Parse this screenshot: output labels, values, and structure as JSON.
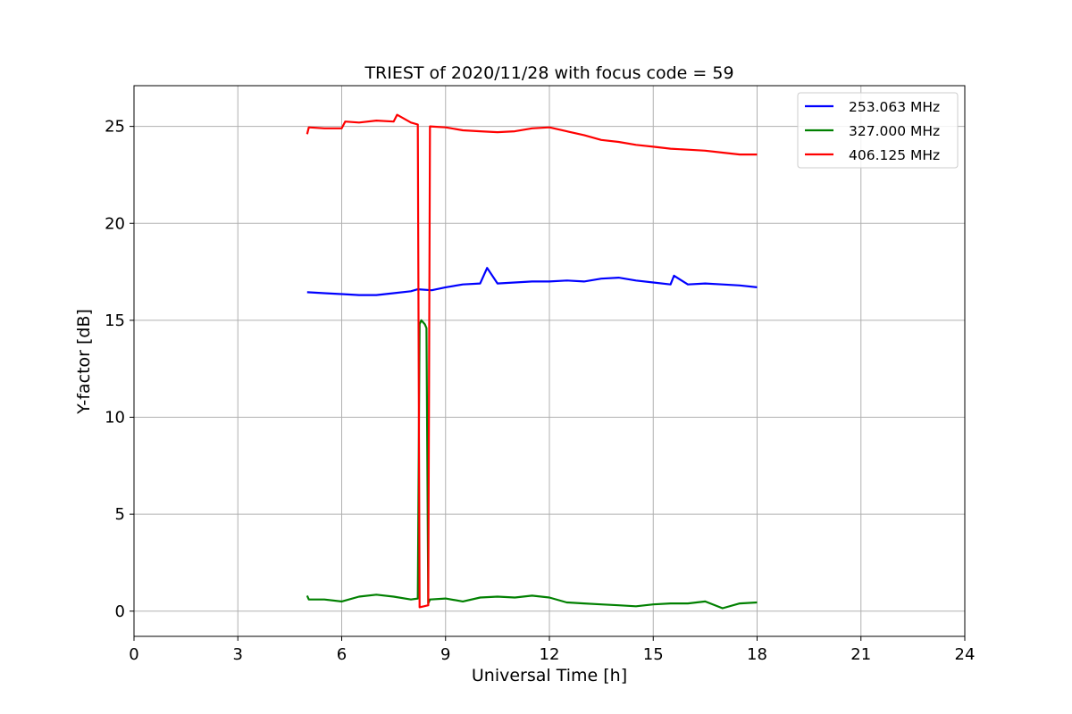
{
  "chart_data": {
    "type": "line",
    "title": "TRIEST of 2020/11/28 with focus code = 59",
    "xlabel": "Universal Time [h]",
    "ylabel": "Y-factor [dB]",
    "xlim": [
      0,
      24
    ],
    "ylim": [
      -1.3,
      27.1
    ],
    "xticks": [
      0,
      3,
      6,
      9,
      12,
      15,
      18,
      21,
      24
    ],
    "yticks": [
      0,
      5,
      10,
      15,
      20,
      25
    ],
    "grid": true,
    "legend_position": "top-right",
    "series": [
      {
        "name": "253.063 MHz",
        "color": "#0000ff",
        "x": [
          5.0,
          5.5,
          6.0,
          6.5,
          7.0,
          7.5,
          8.0,
          8.2,
          8.6,
          9.0,
          9.5,
          10.0,
          10.2,
          10.5,
          11.0,
          11.5,
          12.0,
          12.5,
          13.0,
          13.5,
          14.0,
          14.5,
          15.0,
          15.5,
          15.6,
          16.0,
          16.5,
          17.0,
          17.5,
          18.0
        ],
        "y": [
          16.45,
          16.4,
          16.35,
          16.3,
          16.3,
          16.4,
          16.5,
          16.6,
          16.55,
          16.7,
          16.85,
          16.9,
          17.7,
          16.9,
          16.95,
          17.0,
          17.0,
          17.05,
          17.0,
          17.15,
          17.2,
          17.05,
          16.95,
          16.85,
          17.3,
          16.85,
          16.9,
          16.85,
          16.8,
          16.7
        ]
      },
      {
        "name": "327.000 MHz",
        "color": "#008000",
        "x": [
          5.0,
          5.05,
          5.5,
          6.0,
          6.5,
          7.0,
          7.5,
          8.0,
          8.2,
          8.25,
          8.3,
          8.4,
          8.45,
          8.5,
          8.55,
          9.0,
          9.5,
          10.0,
          10.5,
          11.0,
          11.5,
          12.0,
          12.5,
          13.0,
          13.5,
          14.0,
          14.5,
          15.0,
          15.5,
          16.0,
          16.5,
          17.0,
          17.5,
          18.0
        ],
        "y": [
          0.8,
          0.6,
          0.6,
          0.5,
          0.75,
          0.85,
          0.75,
          0.6,
          0.65,
          14.8,
          15.0,
          14.8,
          14.6,
          0.4,
          0.6,
          0.65,
          0.5,
          0.7,
          0.75,
          0.7,
          0.8,
          0.7,
          0.45,
          0.4,
          0.35,
          0.3,
          0.25,
          0.35,
          0.4,
          0.4,
          0.5,
          0.15,
          0.4,
          0.45
        ]
      },
      {
        "name": "406.125 MHz",
        "color": "#ff0000",
        "x": [
          5.0,
          5.05,
          5.5,
          6.0,
          6.1,
          6.5,
          7.0,
          7.5,
          7.6,
          8.0,
          8.2,
          8.25,
          8.5,
          8.55,
          9.0,
          9.5,
          10.0,
          10.5,
          11.0,
          11.5,
          12.0,
          12.5,
          13.0,
          13.5,
          14.0,
          14.5,
          15.0,
          15.5,
          16.0,
          16.5,
          17.0,
          17.5,
          18.0
        ],
        "y": [
          24.6,
          24.95,
          24.9,
          24.9,
          25.25,
          25.2,
          25.3,
          25.25,
          25.6,
          25.2,
          25.1,
          0.2,
          0.3,
          25.0,
          24.95,
          24.8,
          24.75,
          24.7,
          24.75,
          24.9,
          24.95,
          24.75,
          24.55,
          24.3,
          24.2,
          24.05,
          23.95,
          23.85,
          23.8,
          23.75,
          23.65,
          23.55,
          23.55
        ]
      }
    ]
  }
}
